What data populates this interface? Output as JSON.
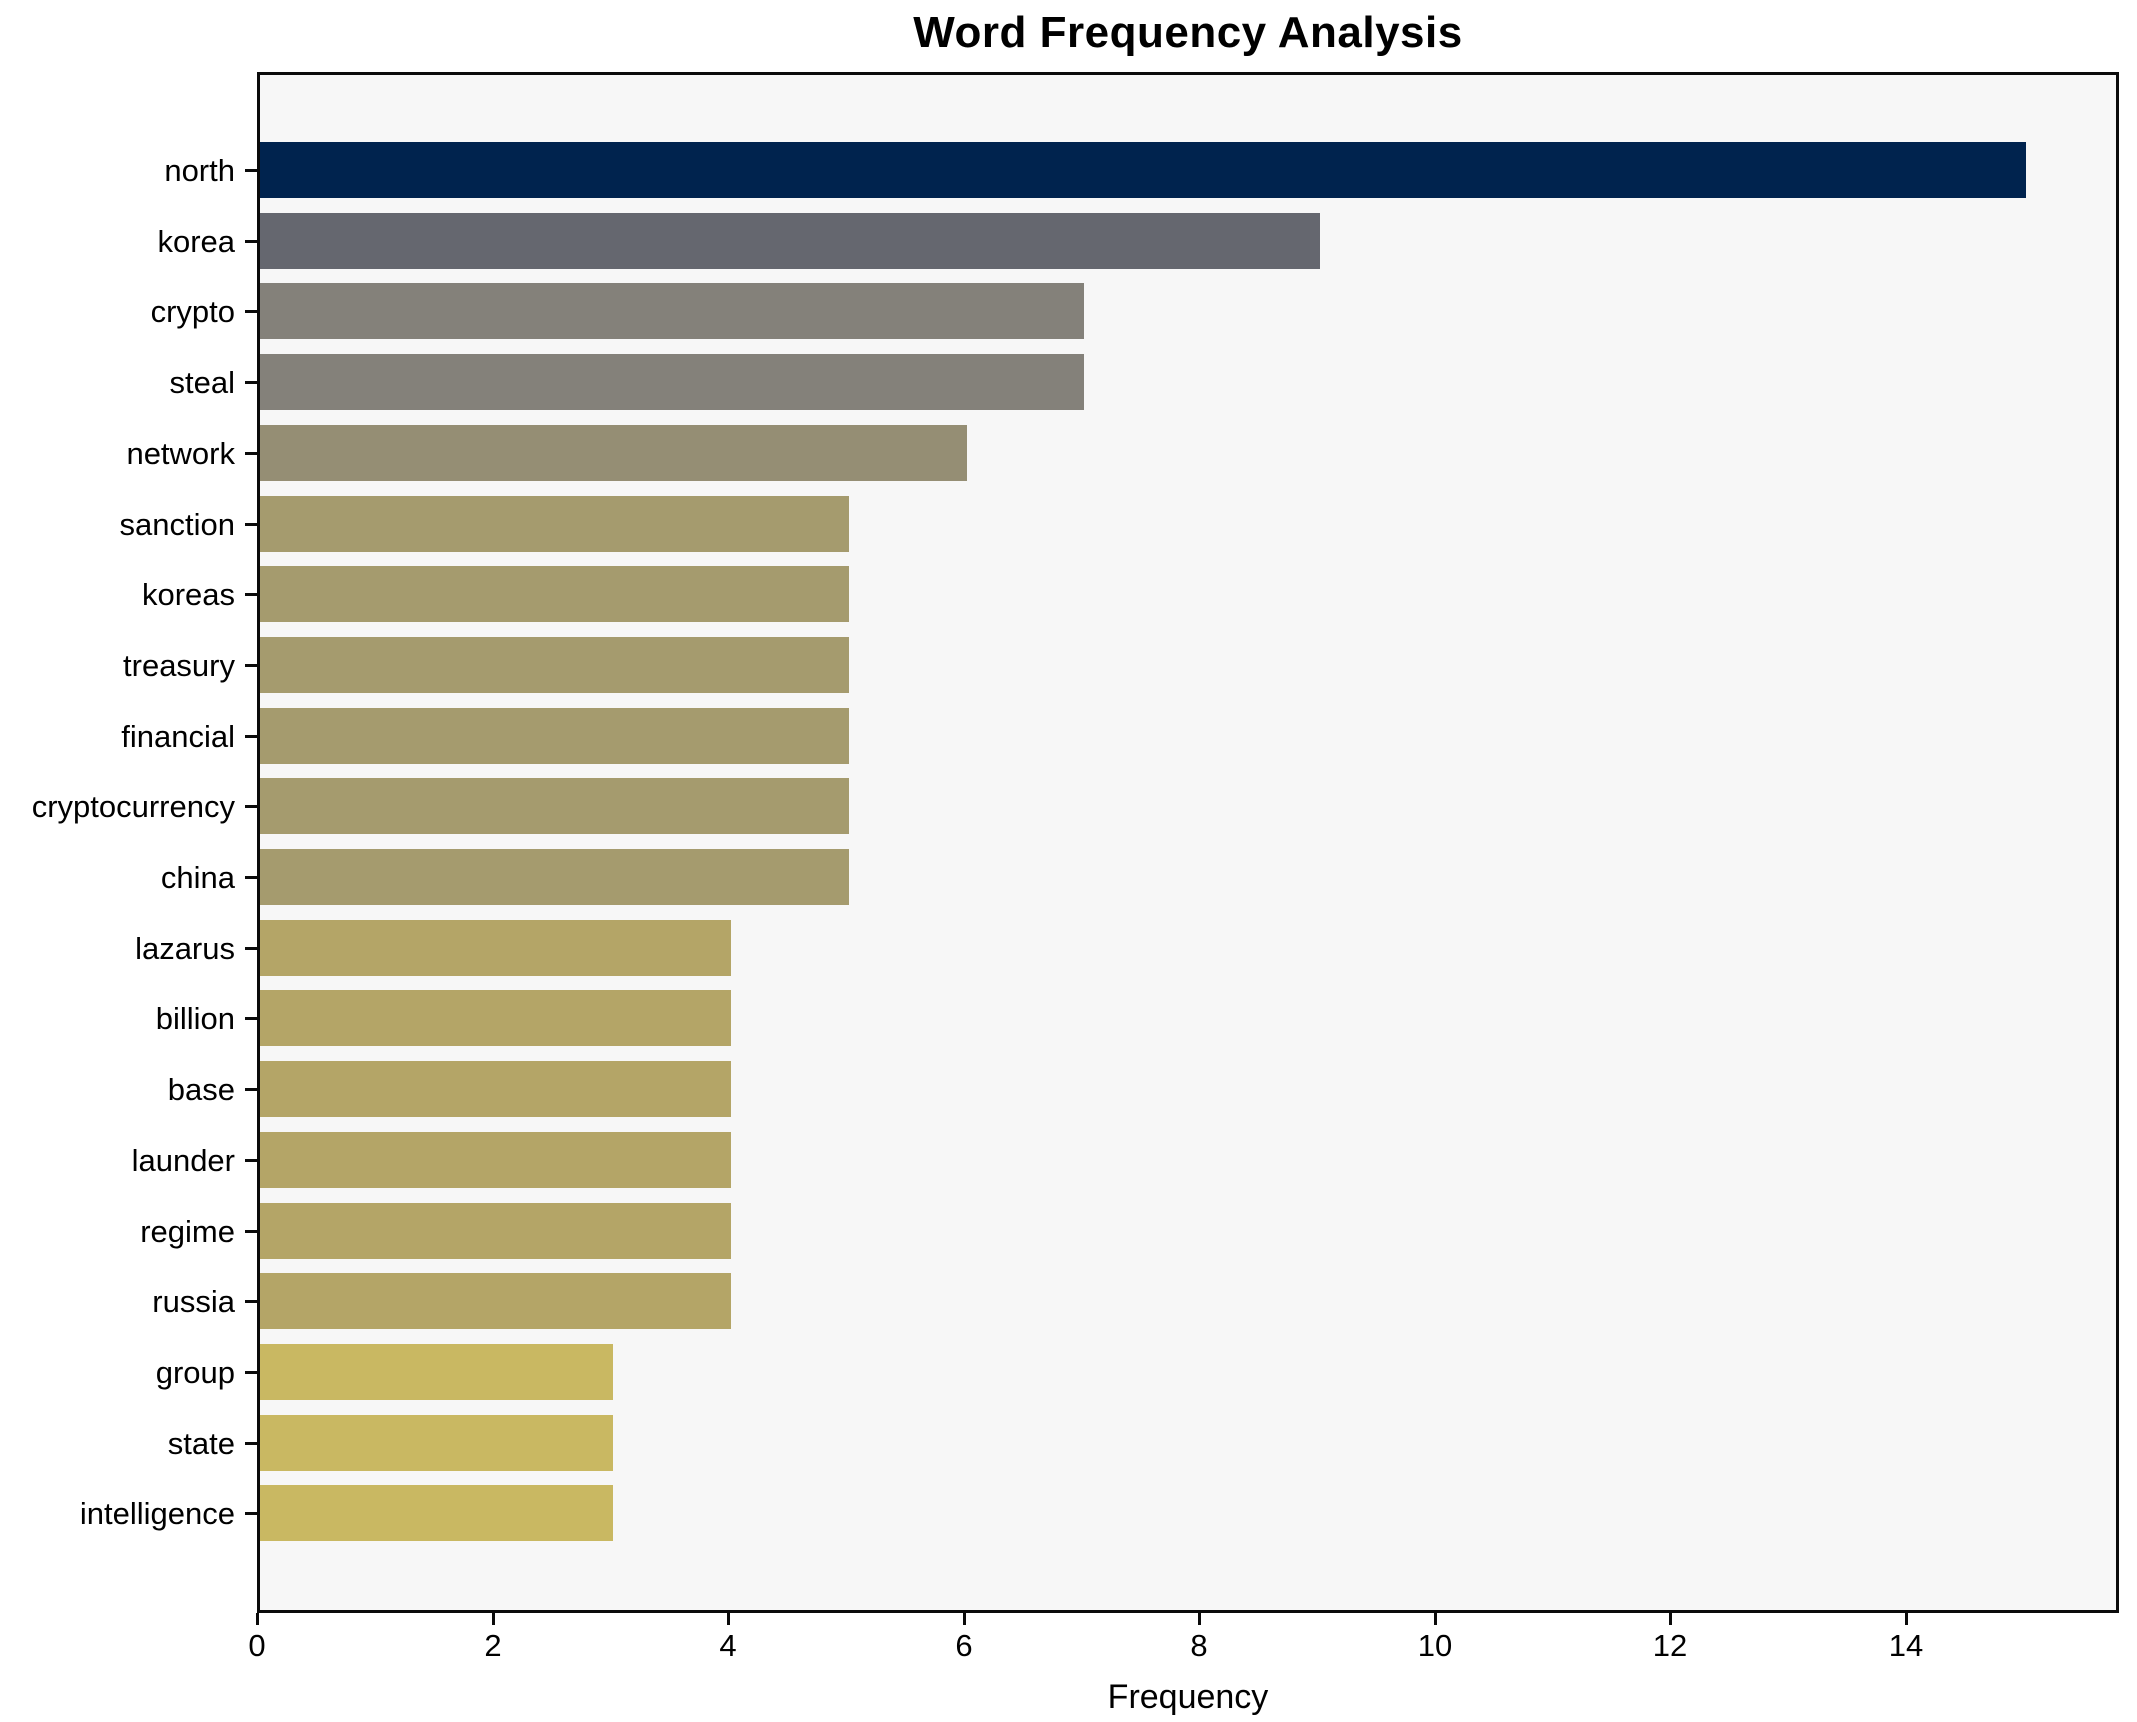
{
  "title": "Word Frequency Analysis",
  "xlabel": "Frequency",
  "chart_data": {
    "type": "bar",
    "orientation": "horizontal",
    "title": "Word Frequency Analysis",
    "xlabel": "Frequency",
    "ylabel": "",
    "categories": [
      "north",
      "korea",
      "crypto",
      "steal",
      "network",
      "sanction",
      "koreas",
      "treasury",
      "financial",
      "cryptocurrency",
      "china",
      "lazarus",
      "billion",
      "base",
      "launder",
      "regime",
      "russia",
      "group",
      "state",
      "intelligence"
    ],
    "values": [
      15,
      9,
      7,
      7,
      6,
      5,
      5,
      5,
      5,
      5,
      5,
      4,
      4,
      4,
      4,
      4,
      4,
      3,
      3,
      3
    ],
    "bar_colors": [
      "#00234e",
      "#65676f",
      "#84817a",
      "#84817a",
      "#958e74",
      "#a59b6e",
      "#a59b6e",
      "#a59b6e",
      "#a59b6e",
      "#a59b6e",
      "#a59b6e",
      "#b4a567",
      "#b4a567",
      "#b4a567",
      "#b4a567",
      "#b4a567",
      "#b4a567",
      "#c9b862",
      "#c9b862",
      "#c9b862"
    ],
    "xlim": [
      0,
      15.76
    ],
    "x_ticks": [
      0,
      2,
      4,
      6,
      8,
      10,
      12,
      14
    ],
    "grid": false,
    "legend": false,
    "plot_bg_color": "#f7f7f7",
    "figure_bg_color": "#ffffff",
    "frame_color": "#0b0b0b"
  }
}
